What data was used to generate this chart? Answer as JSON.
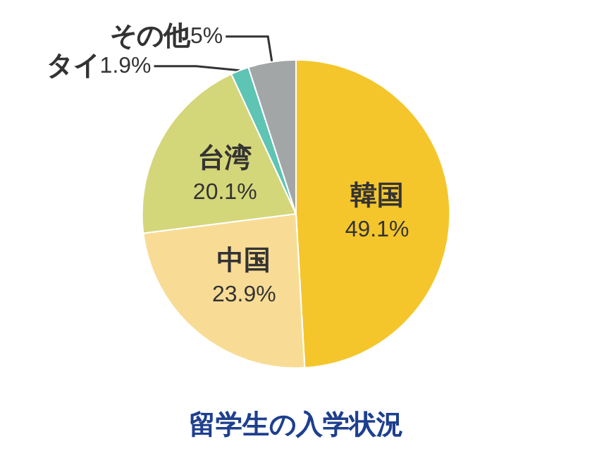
{
  "chart_data": {
    "type": "pie",
    "title": "留学生の入学状況",
    "categories": [
      "韓国",
      "中国",
      "台湾",
      "タイ",
      "その他"
    ],
    "values": [
      49.1,
      23.9,
      20.1,
      1.9,
      5
    ],
    "colors": [
      "#f4c62b",
      "#f8dc96",
      "#d4d67a",
      "#5ec4b4",
      "#a3a6a6"
    ],
    "value_labels": [
      "49.1%",
      "23.9%",
      "20.1%",
      "1.9%",
      "5%"
    ],
    "legend": false
  }
}
